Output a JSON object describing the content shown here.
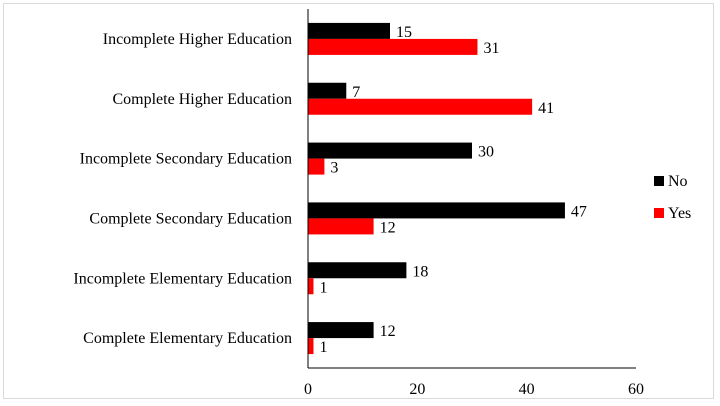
{
  "chart_data": {
    "type": "bar",
    "orientation": "horizontal",
    "categories": [
      "Incomplete Higher Education",
      "Complete Higher Education",
      "Incomplete Secondary Education",
      "Complete Secondary Education",
      "Incomplete Elementary Education",
      "Complete Elementary Education"
    ],
    "series": [
      {
        "name": "No",
        "color": "#000000",
        "values": [
          15,
          7,
          30,
          47,
          18,
          12
        ]
      },
      {
        "name": "Yes",
        "color": "#ff0000",
        "values": [
          31,
          41,
          3,
          12,
          1,
          1
        ]
      }
    ],
    "xlim": [
      0,
      60
    ],
    "x_ticks": [
      "0",
      "20",
      "40",
      "60"
    ],
    "legend_position": "right",
    "grid": false,
    "title": "",
    "xlabel": "",
    "ylabel": ""
  }
}
